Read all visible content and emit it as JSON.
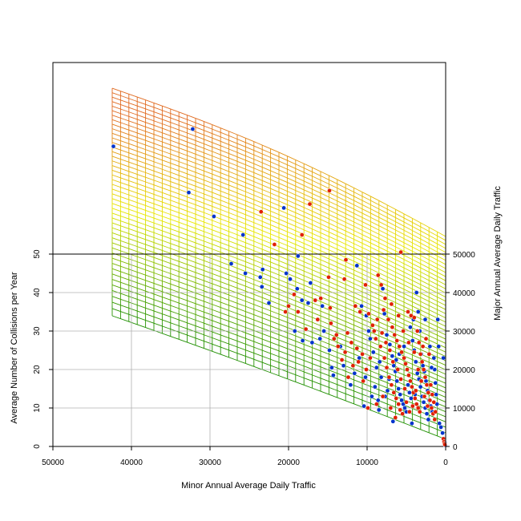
{
  "chart_data": {
    "type": "scatter",
    "title": "",
    "xlabel": "Minor Annual Average Daily Traffic",
    "ylabel": "Average Number of Collisions per Year",
    "y2label": "Major Annual Average Daily Traffic",
    "xlim": [
      50000,
      0
    ],
    "ylim": [
      0,
      50
    ],
    "y2lim": [
      0,
      50000
    ],
    "x_ticks": [
      {
        "value": 50000,
        "label": "50000"
      },
      {
        "value": 40000,
        "label": "40000"
      },
      {
        "value": 30000,
        "label": "30000"
      },
      {
        "value": 20000,
        "label": "20000"
      },
      {
        "value": 10000,
        "label": "10000"
      },
      {
        "value": 0,
        "label": "0"
      }
    ],
    "y_ticks": [
      {
        "value": 0,
        "label": "0"
      },
      {
        "value": 10,
        "label": "10"
      },
      {
        "value": 20,
        "label": "20"
      },
      {
        "value": 30,
        "label": "30"
      },
      {
        "value": 40,
        "label": "40"
      },
      {
        "value": 50,
        "label": "50"
      }
    ],
    "y2_ticks": [
      {
        "value": 0,
        "label": "0"
      },
      {
        "value": 10000,
        "label": "10000"
      },
      {
        "value": 20000,
        "label": "20000"
      },
      {
        "value": 30000,
        "label": "30000"
      },
      {
        "value": 40000,
        "label": "40000"
      },
      {
        "value": 50000,
        "label": "50000"
      }
    ],
    "grid": true,
    "colors": {
      "blue_points": "#0033cc",
      "red_points": "#e02000",
      "surface_low": "#1f8f00",
      "surface_mid": "#e8e800",
      "surface_high": "#e06a20"
    },
    "surface": {
      "description_of_mesh": "perspective grid of curves drawn behind the points",
      "minor_range": [
        0,
        42000
      ],
      "major_range": [
        0,
        54000
      ]
    },
    "series": [
      {
        "color": "#0033cc",
        "points": [
          [
            42300,
            78.0
          ],
          [
            32200,
            82.5
          ],
          [
            32700,
            66.0
          ],
          [
            29500,
            59.8
          ],
          [
            25800,
            55.0
          ],
          [
            20600,
            62.0
          ],
          [
            18800,
            49.5
          ],
          [
            27300,
            47.5
          ],
          [
            25500,
            45.0
          ],
          [
            23600,
            44.0
          ],
          [
            23300,
            46.0
          ],
          [
            23400,
            41.5
          ],
          [
            22500,
            37.3
          ],
          [
            20300,
            45.0
          ],
          [
            19800,
            43.5
          ],
          [
            18900,
            41.0
          ],
          [
            18300,
            38.0
          ],
          [
            17500,
            37.3
          ],
          [
            17200,
            42.5
          ],
          [
            19200,
            30.0
          ],
          [
            18200,
            27.5
          ],
          [
            17000,
            27.0
          ],
          [
            15700,
            36.5
          ],
          [
            15500,
            30.0
          ],
          [
            14500,
            20.5
          ],
          [
            14300,
            18.5
          ],
          [
            13400,
            26.0
          ],
          [
            11300,
            47.0
          ],
          [
            10700,
            36.5
          ],
          [
            10100,
            34.0
          ],
          [
            9800,
            30.0
          ],
          [
            9600,
            28.0
          ],
          [
            9200,
            24.5
          ],
          [
            8800,
            20.5
          ],
          [
            8400,
            22.0
          ],
          [
            8200,
            18.0
          ],
          [
            8000,
            41.0
          ],
          [
            7800,
            34.5
          ],
          [
            7500,
            29.0
          ],
          [
            7100,
            26.5
          ],
          [
            6800,
            23.5
          ],
          [
            6600,
            21.0
          ],
          [
            6400,
            19.5
          ],
          [
            6200,
            17.0
          ],
          [
            6000,
            15.0
          ],
          [
            5800,
            13.5
          ],
          [
            5600,
            12.0
          ],
          [
            5400,
            11.0
          ],
          [
            5200,
            10.0
          ],
          [
            5000,
            9.0
          ],
          [
            4800,
            16.0
          ],
          [
            4600,
            14.0
          ],
          [
            4400,
            12.5
          ],
          [
            4200,
            27.5
          ],
          [
            4000,
            25.0
          ],
          [
            3800,
            22.0
          ],
          [
            3600,
            19.0
          ],
          [
            3400,
            17.5
          ],
          [
            3200,
            15.5
          ],
          [
            3000,
            13.0
          ],
          [
            2800,
            11.5
          ],
          [
            2600,
            10.0
          ],
          [
            2400,
            8.5
          ],
          [
            2200,
            7.0
          ],
          [
            3700,
            40.0
          ],
          [
            3500,
            35.0
          ],
          [
            3300,
            30.0
          ],
          [
            3100,
            24.0
          ],
          [
            2900,
            21.0
          ],
          [
            2700,
            19.5
          ],
          [
            2500,
            17.0
          ],
          [
            2300,
            14.5
          ],
          [
            2100,
            12.0
          ],
          [
            1900,
            10.5
          ],
          [
            1700,
            9.0
          ],
          [
            1500,
            23.0
          ],
          [
            1400,
            20.0
          ],
          [
            1300,
            16.5
          ],
          [
            1200,
            13.5
          ],
          [
            1100,
            11.0
          ],
          [
            1000,
            33.0
          ],
          [
            900,
            26.0
          ],
          [
            800,
            6.0
          ],
          [
            600,
            5.0
          ],
          [
            400,
            3.5
          ],
          [
            300,
            23.0
          ],
          [
            200,
            2.0
          ],
          [
            100,
            1.0
          ],
          [
            50,
            0.3
          ],
          [
            6700,
            6.5
          ],
          [
            7400,
            14.5
          ],
          [
            8600,
            12.0
          ],
          [
            9000,
            15.5
          ],
          [
            10200,
            18.0
          ],
          [
            11000,
            23.0
          ],
          [
            12100,
            16.0
          ],
          [
            13000,
            21.0
          ],
          [
            14800,
            25.0
          ],
          [
            16000,
            28.0
          ],
          [
            4100,
            33.0
          ],
          [
            4500,
            31.0
          ],
          [
            5300,
            26.0
          ],
          [
            5900,
            24.0
          ],
          [
            6300,
            22.5
          ],
          [
            7200,
            17.5
          ],
          [
            7700,
            13.0
          ],
          [
            8500,
            9.5
          ],
          [
            9400,
            13.0
          ],
          [
            10400,
            10.5
          ],
          [
            11600,
            19.0
          ],
          [
            1800,
            20.5
          ],
          [
            2000,
            26.0
          ],
          [
            2600,
            33.0
          ],
          [
            3900,
            13.5
          ],
          [
            4300,
            6.0
          ]
        ]
      },
      {
        "color": "#e02000",
        "points": [
          [
            23500,
            61.0
          ],
          [
            17300,
            63.0
          ],
          [
            14800,
            66.5
          ],
          [
            18300,
            55.0
          ],
          [
            21800,
            52.5
          ],
          [
            5700,
            50.5
          ],
          [
            12700,
            48.5
          ],
          [
            14900,
            44.0
          ],
          [
            12900,
            43.5
          ],
          [
            10200,
            42.0
          ],
          [
            8200,
            42.0
          ],
          [
            8600,
            44.5
          ],
          [
            19300,
            39.5
          ],
          [
            20000,
            36.5
          ],
          [
            20400,
            35.0
          ],
          [
            18800,
            35.0
          ],
          [
            16600,
            38.0
          ],
          [
            15900,
            38.5
          ],
          [
            14700,
            36.0
          ],
          [
            14600,
            32.0
          ],
          [
            13900,
            29.0
          ],
          [
            12500,
            29.5
          ],
          [
            12000,
            27.0
          ],
          [
            11300,
            25.5
          ],
          [
            10600,
            24.0
          ],
          [
            12800,
            24.5
          ],
          [
            13700,
            26.0
          ],
          [
            14200,
            28.0
          ],
          [
            16300,
            33.0
          ],
          [
            17800,
            30.5
          ],
          [
            11500,
            36.5
          ],
          [
            10900,
            35.0
          ],
          [
            9800,
            34.5
          ],
          [
            9300,
            31.5
          ],
          [
            8900,
            28.0
          ],
          [
            8300,
            26.0
          ],
          [
            7800,
            23.0
          ],
          [
            7500,
            20.5
          ],
          [
            7200,
            18.0
          ],
          [
            6900,
            16.0
          ],
          [
            6600,
            14.0
          ],
          [
            6300,
            12.5
          ],
          [
            6000,
            11.0
          ],
          [
            5800,
            9.5
          ],
          [
            5500,
            8.5
          ],
          [
            7900,
            35.5
          ],
          [
            7300,
            33.0
          ],
          [
            6800,
            31.0
          ],
          [
            6500,
            29.0
          ],
          [
            6200,
            27.5
          ],
          [
            5900,
            26.0
          ],
          [
            5600,
            24.5
          ],
          [
            5300,
            23.0
          ],
          [
            5100,
            21.5
          ],
          [
            4900,
            20.0
          ],
          [
            4700,
            18.5
          ],
          [
            4500,
            17.0
          ],
          [
            4300,
            15.5
          ],
          [
            4100,
            14.0
          ],
          [
            3900,
            12.5
          ],
          [
            3700,
            11.0
          ],
          [
            3500,
            10.0
          ],
          [
            3300,
            9.0
          ],
          [
            4800,
            35.0
          ],
          [
            4400,
            34.0
          ],
          [
            4000,
            33.5
          ],
          [
            3600,
            30.0
          ],
          [
            3400,
            27.0
          ],
          [
            3200,
            24.0
          ],
          [
            3000,
            22.0
          ],
          [
            2800,
            20.0
          ],
          [
            2600,
            18.0
          ],
          [
            2400,
            16.0
          ],
          [
            2200,
            14.0
          ],
          [
            2000,
            12.0
          ],
          [
            1800,
            10.0
          ],
          [
            1600,
            8.5
          ],
          [
            1400,
            7.0
          ],
          [
            5200,
            15.0
          ],
          [
            5700,
            17.5
          ],
          [
            6100,
            20.0
          ],
          [
            6700,
            22.0
          ],
          [
            7100,
            25.0
          ],
          [
            7600,
            27.0
          ],
          [
            8100,
            29.5
          ],
          [
            8700,
            33.0
          ],
          [
            9100,
            30.0
          ],
          [
            9600,
            23.0
          ],
          [
            10100,
            20.0
          ],
          [
            10500,
            17.0
          ],
          [
            11100,
            22.0
          ],
          [
            11800,
            21.0
          ],
          [
            12400,
            18.0
          ],
          [
            13200,
            22.5
          ],
          [
            9900,
            10.0
          ],
          [
            8800,
            11.0
          ],
          [
            8000,
            13.0
          ],
          [
            7000,
            10.0
          ],
          [
            6400,
            7.5
          ],
          [
            5000,
            11.5
          ],
          [
            4600,
            9.0
          ],
          [
            4200,
            10.5
          ],
          [
            3800,
            14.5
          ],
          [
            3100,
            17.0
          ],
          [
            2700,
            13.0
          ],
          [
            2300,
            10.5
          ],
          [
            1900,
            16.0
          ],
          [
            1700,
            13.5
          ],
          [
            1500,
            11.5
          ],
          [
            1300,
            9.0
          ],
          [
            2100,
            24.0
          ],
          [
            2500,
            28.0
          ],
          [
            2900,
            26.0
          ],
          [
            3500,
            20.0
          ],
          [
            4000,
            24.5
          ],
          [
            4700,
            27.0
          ],
          [
            5400,
            30.0
          ],
          [
            6000,
            34.0
          ],
          [
            6900,
            37.0
          ],
          [
            7700,
            38.5
          ],
          [
            300,
            2.0
          ],
          [
            200,
            1.2
          ],
          [
            150,
            0.8
          ],
          [
            100,
            0.5
          ]
        ]
      }
    ]
  }
}
